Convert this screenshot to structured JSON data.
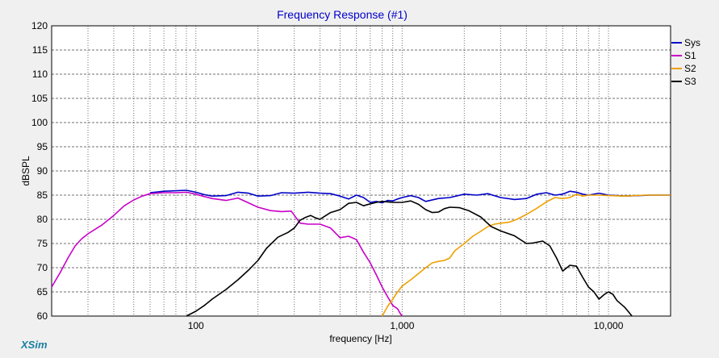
{
  "chart_data": {
    "type": "line",
    "title": "Frequency Response (#1)",
    "xlabel": "frequency [Hz]",
    "ylabel": "dBSPL",
    "x_scale": "log",
    "xlim": [
      20,
      20000
    ],
    "ylim": [
      60,
      120
    ],
    "y_ticks": [
      60,
      65,
      70,
      75,
      80,
      85,
      90,
      95,
      100,
      105,
      110,
      115,
      120
    ],
    "x_tick_labels": [
      {
        "value": 100,
        "label": "100"
      },
      {
        "value": 1000,
        "label": "1,000"
      },
      {
        "value": 10000,
        "label": "10,000"
      }
    ],
    "x_gridlines": [
      30,
      40,
      50,
      60,
      70,
      80,
      90,
      100,
      200,
      300,
      400,
      500,
      600,
      700,
      800,
      900,
      1000,
      2000,
      3000,
      4000,
      5000,
      6000,
      7000,
      8000,
      9000,
      10000
    ],
    "grid": true,
    "legend_position": "right",
    "series": [
      {
        "name": "Sys",
        "color": "#0000c8",
        "points": [
          [
            60,
            85.5
          ],
          [
            70,
            85.8
          ],
          [
            80,
            85.9
          ],
          [
            90,
            86
          ],
          [
            100,
            85.6
          ],
          [
            110,
            85.1
          ],
          [
            120,
            84.8
          ],
          [
            140,
            84.9
          ],
          [
            160,
            85.6
          ],
          [
            180,
            85.4
          ],
          [
            200,
            84.8
          ],
          [
            230,
            84.9
          ],
          [
            260,
            85.5
          ],
          [
            300,
            85.4
          ],
          [
            350,
            85.6
          ],
          [
            400,
            85.4
          ],
          [
            450,
            85.3
          ],
          [
            500,
            84.8
          ],
          [
            550,
            84.2
          ],
          [
            600,
            85
          ],
          [
            650,
            84.5
          ],
          [
            700,
            83.5
          ],
          [
            750,
            83.7
          ],
          [
            800,
            83.4
          ],
          [
            850,
            83.9
          ],
          [
            900,
            83.8
          ],
          [
            950,
            84.2
          ],
          [
            1000,
            84.5
          ],
          [
            1100,
            84.9
          ],
          [
            1200,
            84.5
          ],
          [
            1300,
            83.7
          ],
          [
            1500,
            84.3
          ],
          [
            1700,
            84.5
          ],
          [
            2000,
            85.2
          ],
          [
            2300,
            85
          ],
          [
            2600,
            85.3
          ],
          [
            3000,
            84.5
          ],
          [
            3500,
            84.1
          ],
          [
            4000,
            84.3
          ],
          [
            4500,
            85.2
          ],
          [
            5000,
            85.5
          ],
          [
            5500,
            85
          ],
          [
            6000,
            85.2
          ],
          [
            6500,
            85.8
          ],
          [
            7000,
            85.6
          ],
          [
            7500,
            85.2
          ],
          [
            8000,
            85
          ],
          [
            9000,
            85.4
          ],
          [
            10000,
            85
          ],
          [
            12000,
            84.8
          ],
          [
            14000,
            84.9
          ],
          [
            16000,
            85
          ],
          [
            20000,
            85
          ]
        ]
      },
      {
        "name": "S1",
        "color": "#c800c8",
        "points": [
          [
            20,
            66
          ],
          [
            22,
            69
          ],
          [
            24,
            72
          ],
          [
            26,
            74.5
          ],
          [
            28,
            76
          ],
          [
            30,
            77
          ],
          [
            35,
            78.8
          ],
          [
            40,
            80.8
          ],
          [
            45,
            82.8
          ],
          [
            50,
            84
          ],
          [
            55,
            84.8
          ],
          [
            60,
            85.3
          ],
          [
            70,
            85.5
          ],
          [
            80,
            85.5
          ],
          [
            90,
            85.6
          ],
          [
            100,
            85.2
          ],
          [
            110,
            84.7
          ],
          [
            120,
            84.3
          ],
          [
            140,
            83.9
          ],
          [
            160,
            84.4
          ],
          [
            180,
            83.4
          ],
          [
            200,
            82.5
          ],
          [
            230,
            81.8
          ],
          [
            260,
            81.6
          ],
          [
            290,
            81.7
          ],
          [
            320,
            79.2
          ],
          [
            350,
            79
          ],
          [
            400,
            79
          ],
          [
            450,
            78.2
          ],
          [
            500,
            76.2
          ],
          [
            550,
            76.5
          ],
          [
            600,
            75.8
          ],
          [
            650,
            73.2
          ],
          [
            700,
            71
          ],
          [
            750,
            68.5
          ],
          [
            800,
            66
          ],
          [
            850,
            64
          ],
          [
            900,
            62.2
          ],
          [
            950,
            61.5
          ],
          [
            980,
            60.5
          ],
          [
            1000,
            60
          ]
        ]
      },
      {
        "name": "S2",
        "color": "#f0a000",
        "points": [
          [
            800,
            60
          ],
          [
            850,
            62
          ],
          [
            900,
            63.5
          ],
          [
            950,
            65
          ],
          [
            1000,
            66.2
          ],
          [
            1100,
            67.5
          ],
          [
            1200,
            68.8
          ],
          [
            1300,
            70
          ],
          [
            1400,
            71
          ],
          [
            1500,
            71.3
          ],
          [
            1600,
            71.5
          ],
          [
            1700,
            72
          ],
          [
            1800,
            73.5
          ],
          [
            2000,
            75
          ],
          [
            2200,
            76.5
          ],
          [
            2400,
            77.5
          ],
          [
            2600,
            78.5
          ],
          [
            2800,
            79
          ],
          [
            3000,
            79.2
          ],
          [
            3300,
            79.4
          ],
          [
            3600,
            80
          ],
          [
            4000,
            81
          ],
          [
            4500,
            82.3
          ],
          [
            5000,
            83.6
          ],
          [
            5500,
            84.5
          ],
          [
            6000,
            84.3
          ],
          [
            6500,
            84.5
          ],
          [
            7000,
            85.2
          ],
          [
            7500,
            84.8
          ],
          [
            8000,
            85
          ],
          [
            9000,
            85
          ],
          [
            10000,
            84.9
          ],
          [
            12000,
            84.8
          ],
          [
            15000,
            85
          ],
          [
            20000,
            85
          ]
        ]
      },
      {
        "name": "S3",
        "color": "#000000",
        "points": [
          [
            90,
            60
          ],
          [
            100,
            61
          ],
          [
            110,
            62.2
          ],
          [
            120,
            63.5
          ],
          [
            140,
            65.5
          ],
          [
            160,
            67.5
          ],
          [
            180,
            69.5
          ],
          [
            200,
            71.5
          ],
          [
            220,
            74
          ],
          [
            250,
            76.3
          ],
          [
            280,
            77.3
          ],
          [
            300,
            78.2
          ],
          [
            320,
            79.8
          ],
          [
            340,
            80.4
          ],
          [
            360,
            80.8
          ],
          [
            380,
            80.3
          ],
          [
            400,
            80
          ],
          [
            420,
            80.6
          ],
          [
            450,
            81.4
          ],
          [
            500,
            82
          ],
          [
            550,
            83.3
          ],
          [
            600,
            83.5
          ],
          [
            650,
            82.8
          ],
          [
            700,
            83.2
          ],
          [
            750,
            83.5
          ],
          [
            800,
            83.7
          ],
          [
            900,
            83.5
          ],
          [
            1000,
            83.5
          ],
          [
            1100,
            83.8
          ],
          [
            1200,
            83.1
          ],
          [
            1300,
            82
          ],
          [
            1400,
            81.4
          ],
          [
            1500,
            81.5
          ],
          [
            1600,
            82.2
          ],
          [
            1700,
            82.5
          ],
          [
            1900,
            82.4
          ],
          [
            2100,
            81.8
          ],
          [
            2400,
            80.5
          ],
          [
            2700,
            78.5
          ],
          [
            3000,
            77.6
          ],
          [
            3500,
            76.6
          ],
          [
            4000,
            75
          ],
          [
            4300,
            75.1
          ],
          [
            4800,
            75.5
          ],
          [
            5200,
            74.5
          ],
          [
            5600,
            72
          ],
          [
            6000,
            69.3
          ],
          [
            6500,
            70.5
          ],
          [
            7000,
            70.3
          ],
          [
            7500,
            68
          ],
          [
            8000,
            66
          ],
          [
            8500,
            65
          ],
          [
            9000,
            63.5
          ],
          [
            9500,
            64.4
          ],
          [
            10000,
            65
          ],
          [
            10500,
            64.5
          ],
          [
            11000,
            63.2
          ],
          [
            12000,
            61.8
          ],
          [
            13000,
            60
          ]
        ]
      }
    ]
  },
  "brand": "XSim"
}
